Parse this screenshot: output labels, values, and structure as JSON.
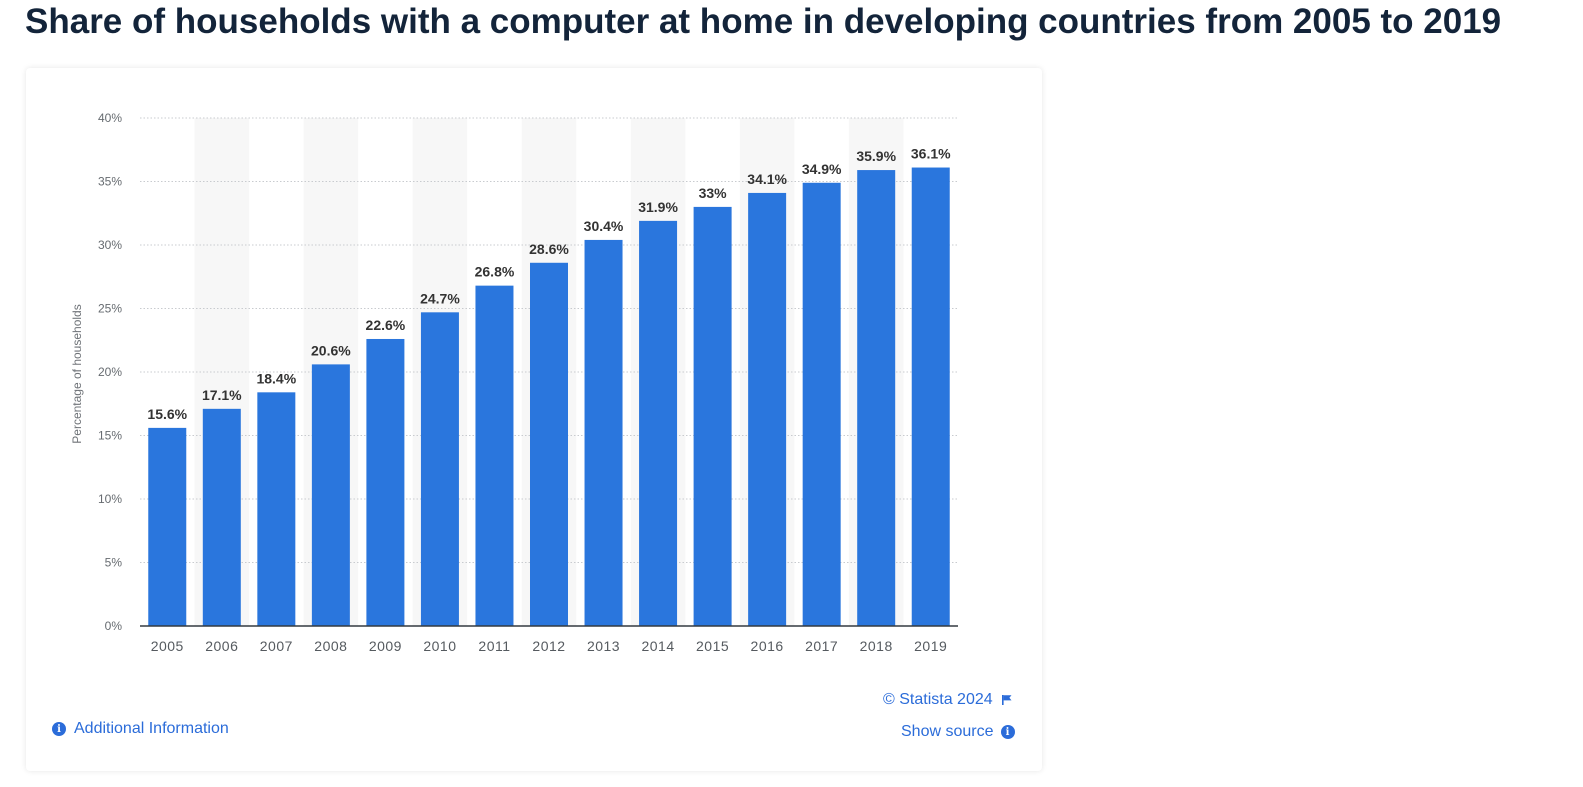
{
  "page": {
    "title": "Share of households with a computer at home in developing countries from 2005 to 2019"
  },
  "footer": {
    "copyright": "© Statista 2024",
    "show_source": "Show source",
    "additional_info": "Additional Information"
  },
  "colors": {
    "bar": "#2a76dd",
    "link": "#2b6cd9",
    "band": "#f7f7f7"
  },
  "icons": {
    "info": "info-icon",
    "flag": "flag-icon"
  },
  "chart_data": {
    "type": "bar",
    "title": "",
    "xlabel": "",
    "ylabel": "Percentage of households",
    "categories": [
      "2005",
      "2006",
      "2007",
      "2008",
      "2009",
      "2010",
      "2011",
      "2012",
      "2013",
      "2014",
      "2015",
      "2016",
      "2017",
      "2018",
      "2019"
    ],
    "values": [
      15.6,
      17.1,
      18.4,
      20.6,
      22.6,
      24.7,
      26.8,
      28.6,
      30.4,
      31.9,
      33,
      34.1,
      34.9,
      35.9,
      36.1
    ],
    "data_labels": [
      "15.6%",
      "17.1%",
      "18.4%",
      "20.6%",
      "22.6%",
      "24.7%",
      "26.8%",
      "28.6%",
      "30.4%",
      "31.9%",
      "33%",
      "34.1%",
      "34.9%",
      "35.9%",
      "36.1%"
    ],
    "ylim": [
      0,
      40
    ],
    "yticks": [
      0,
      5,
      10,
      15,
      20,
      25,
      30,
      35,
      40
    ],
    "ytick_labels": [
      "0%",
      "5%",
      "10%",
      "15%",
      "20%",
      "25%",
      "30%",
      "35%",
      "40%"
    ],
    "grid": true,
    "legend": "none"
  }
}
